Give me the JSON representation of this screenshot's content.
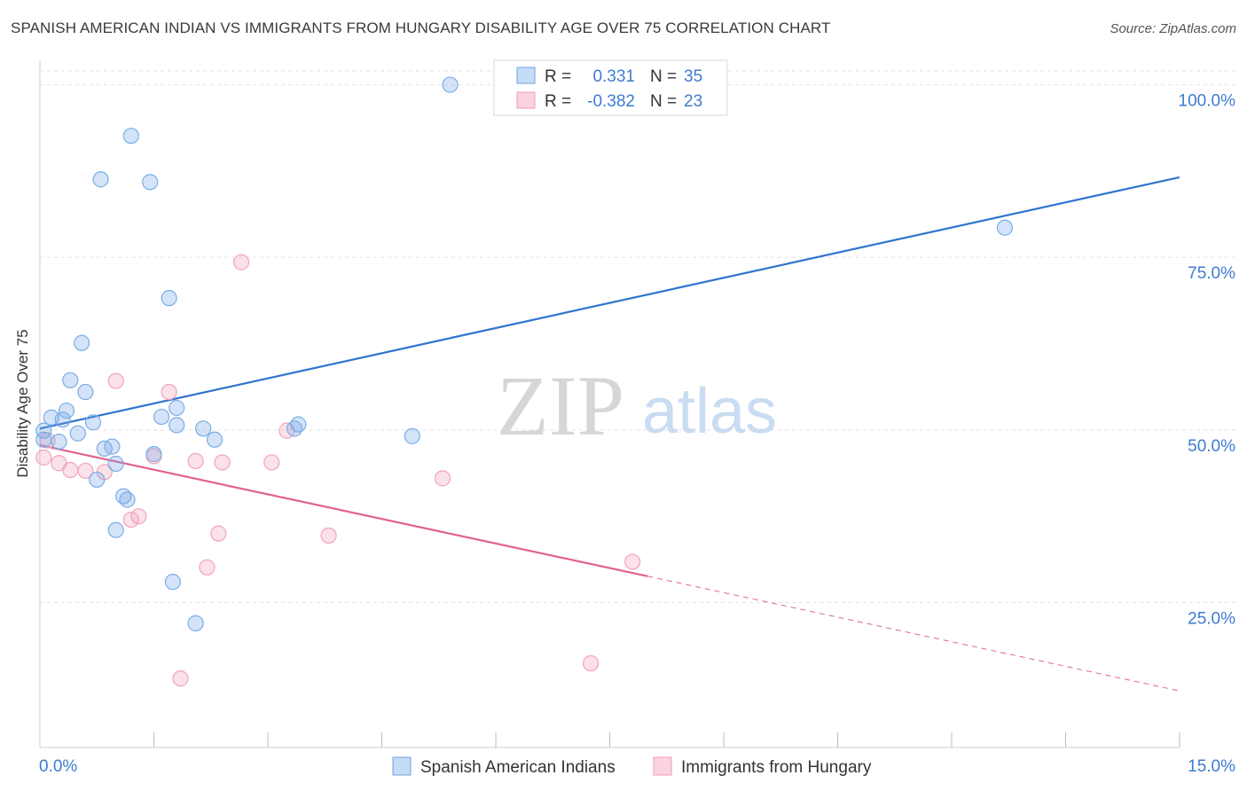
{
  "title": "SPANISH AMERICAN INDIAN VS IMMIGRANTS FROM HUNGARY DISABILITY AGE OVER 75 CORRELATION CHART",
  "source": "Source: ZipAtlas.com",
  "colors": {
    "blue": "#6fa3e6",
    "blue_line": "#2f74d0",
    "pink": "#f29bb3",
    "pink_line": "#e2628f",
    "tick_label": "#3e7bd0",
    "grid": "#e2e2e2"
  },
  "legend": {
    "rows": [
      {
        "r_label": "R =",
        "r_value": "0.331",
        "n_label": "N =",
        "n_value": "35"
      },
      {
        "r_label": "R =",
        "r_value": "-0.382",
        "n_label": "N =",
        "n_value": "23"
      }
    ]
  },
  "watermark": {
    "zip": "ZIP",
    "atlas": "atlas"
  },
  "chart_data": {
    "type": "scatter",
    "title": "SPANISH AMERICAN INDIAN VS IMMIGRANTS FROM HUNGARY DISABILITY AGE OVER 75 CORRELATION CHART",
    "xlabel": "",
    "ylabel": "Disability Age Over 75",
    "xlim": [
      0,
      15
    ],
    "ylim": [
      4,
      102
    ],
    "x_tick_labels": [
      "0.0%",
      "15.0%"
    ],
    "y_ticks": [
      25,
      50,
      75,
      100
    ],
    "y_tick_labels": [
      "25.0%",
      "50.0%",
      "75.0%",
      "100.0%"
    ],
    "grid": true,
    "legend_position": "top-center",
    "series": [
      {
        "name": "Spanish American Indians",
        "color": "#6fa3e6",
        "r": 0.331,
        "n": 35,
        "trend": {
          "x0": 0,
          "y0": 50.2,
          "x1": 15,
          "y1": 86.6,
          "dashed_from": null
        },
        "points": [
          [
            5.4,
            100.0
          ],
          [
            1.2,
            92.6
          ],
          [
            0.8,
            86.3
          ],
          [
            1.45,
            85.9
          ],
          [
            12.7,
            79.3
          ],
          [
            1.7,
            69.1
          ],
          [
            0.55,
            62.6
          ],
          [
            0.4,
            57.2
          ],
          [
            0.6,
            55.5
          ],
          [
            0.35,
            52.8
          ],
          [
            1.8,
            53.2
          ],
          [
            0.15,
            51.8
          ],
          [
            0.3,
            51.5
          ],
          [
            0.7,
            51.1
          ],
          [
            1.6,
            51.9
          ],
          [
            1.8,
            50.7
          ],
          [
            2.15,
            50.2
          ],
          [
            3.4,
            50.8
          ],
          [
            3.35,
            50.2
          ],
          [
            0.05,
            49.9
          ],
          [
            0.5,
            49.5
          ],
          [
            0.05,
            48.6
          ],
          [
            0.25,
            48.3
          ],
          [
            2.3,
            48.6
          ],
          [
            4.9,
            49.1
          ],
          [
            0.85,
            47.3
          ],
          [
            0.95,
            47.6
          ],
          [
            1.5,
            46.5
          ],
          [
            1.0,
            45.1
          ],
          [
            0.75,
            42.8
          ],
          [
            1.1,
            40.4
          ],
          [
            1.15,
            39.9
          ],
          [
            1.0,
            35.5
          ],
          [
            1.75,
            28.0
          ],
          [
            2.05,
            22.0
          ]
        ]
      },
      {
        "name": "Immigrants from Hungary",
        "color": "#f29bb3",
        "r": -0.382,
        "n": 23,
        "trend": {
          "x0": 0,
          "y0": 47.8,
          "x1": 15,
          "y1": 12.2,
          "dashed_from": 8.0
        },
        "points": [
          [
            2.65,
            74.3
          ],
          [
            1.0,
            57.1
          ],
          [
            1.7,
            55.5
          ],
          [
            3.25,
            49.9
          ],
          [
            0.1,
            48.5
          ],
          [
            1.5,
            46.2
          ],
          [
            0.05,
            46.0
          ],
          [
            0.25,
            45.2
          ],
          [
            2.05,
            45.5
          ],
          [
            2.4,
            45.3
          ],
          [
            3.05,
            45.3
          ],
          [
            0.4,
            44.2
          ],
          [
            0.6,
            44.1
          ],
          [
            0.85,
            43.9
          ],
          [
            5.3,
            43.0
          ],
          [
            1.3,
            37.5
          ],
          [
            1.2,
            37.0
          ],
          [
            2.35,
            35.0
          ],
          [
            3.8,
            34.7
          ],
          [
            7.8,
            30.9
          ],
          [
            2.2,
            30.1
          ],
          [
            7.25,
            16.2
          ],
          [
            1.85,
            14.0
          ]
        ]
      }
    ]
  }
}
